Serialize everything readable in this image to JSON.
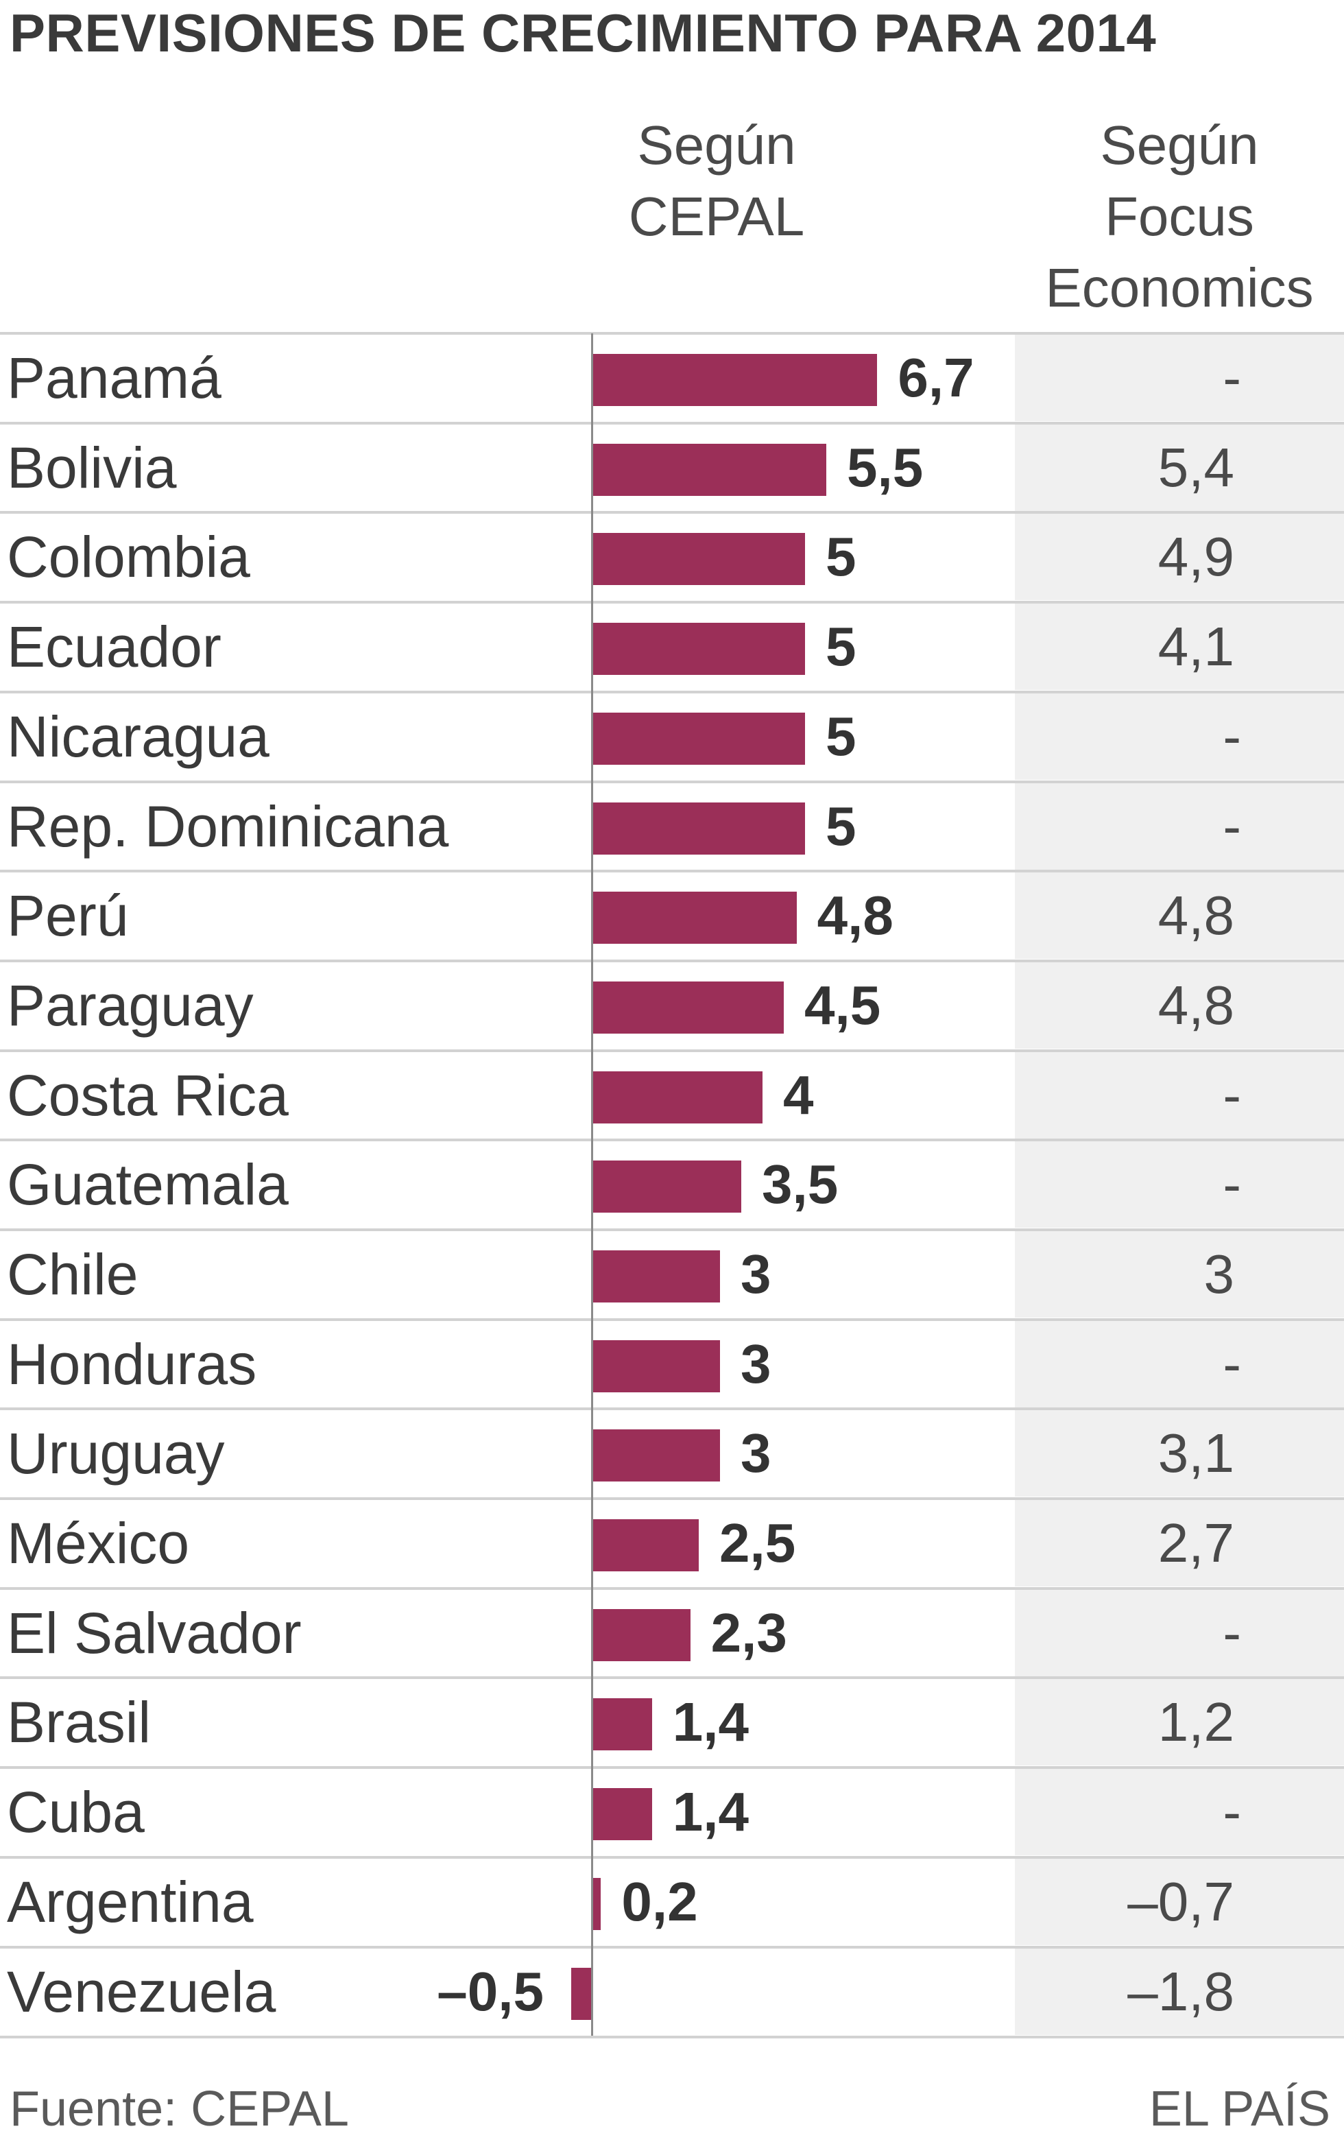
{
  "title": "PREVISIONES DE CRECIMIENTO PARA 2014",
  "columns": {
    "cepal": [
      "Según",
      "CEPAL"
    ],
    "focus": [
      "Según",
      "Focus",
      "Economics"
    ]
  },
  "footer": {
    "source": "Fuente: CEPAL",
    "brand": "EL PAÍS"
  },
  "colors": {
    "bar": "#9b2f58",
    "focus_bg": "#f0f0f0",
    "rule": "#d2d2d2"
  },
  "chart_data": {
    "type": "bar",
    "orientation": "horizontal",
    "title": "PREVISIONES DE CRECIMIENTO PARA 2014",
    "categories": [
      "Panamá",
      "Bolivia",
      "Colombia",
      "Ecuador",
      "Nicaragua",
      "Rep. Dominicana",
      "Perú",
      "Paraguay",
      "Costa Rica",
      "Guatemala",
      "Chile",
      "Honduras",
      "Uruguay",
      "México",
      "El Salvador",
      "Brasil",
      "Cuba",
      "Argentina",
      "Venezuela"
    ],
    "series": [
      {
        "name": "Según CEPAL",
        "values": [
          6.7,
          5.5,
          5,
          5,
          5,
          5,
          4.8,
          4.5,
          4,
          3.5,
          3,
          3,
          3,
          2.5,
          2.3,
          1.4,
          1.4,
          0.2,
          -0.5
        ],
        "labels": [
          "6,7",
          "5,5",
          "5",
          "5",
          "5",
          "5",
          "4,8",
          "4,5",
          "4",
          "3,5",
          "3",
          "3",
          "3",
          "2,5",
          "2,3",
          "1,4",
          "1,4",
          "0,2",
          "–0,5"
        ]
      },
      {
        "name": "Según Focus Economics",
        "values": [
          null,
          5.4,
          4.9,
          4.1,
          null,
          null,
          4.8,
          4.8,
          null,
          null,
          3,
          null,
          3.1,
          2.7,
          null,
          1.2,
          null,
          -0.7,
          -1.8
        ],
        "labels": [
          "-",
          "5,4",
          "4,9",
          "4,1",
          "-",
          "-",
          "4,8",
          "4,8",
          "-",
          "-",
          "3",
          "-",
          "3,1",
          "2,7",
          "-",
          "1,2",
          "-",
          "–0,7",
          "–1,8"
        ]
      }
    ],
    "grid": false,
    "legend": "none"
  }
}
